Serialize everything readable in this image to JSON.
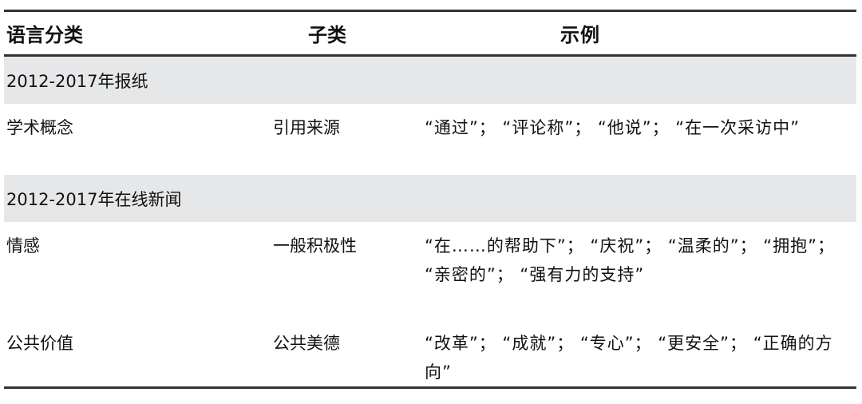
{
  "table": {
    "headers": [
      "语言分类",
      "子类",
      "示例"
    ],
    "sections": [
      {
        "title": "2012-2017年报纸",
        "rows": [
          {
            "category": "学术概念",
            "subcategory": "引用来源",
            "examples": "“通过”； “评论称”； “他说”； “在一次采访中”"
          }
        ]
      },
      {
        "title": "2012-2017年在线新闻",
        "rows": [
          {
            "category": "情感",
            "subcategory": "一般积极性",
            "examples": "“在……的帮助下”； “庆祝”； “温柔的”； “拥抱”； “亲密的”； “强有力的支持”"
          },
          {
            "category": "公共价值",
            "subcategory": "公共美德",
            "examples": "“改革”； “成就”； “专心”； “更安全”； “正确的方向”"
          }
        ]
      }
    ]
  }
}
